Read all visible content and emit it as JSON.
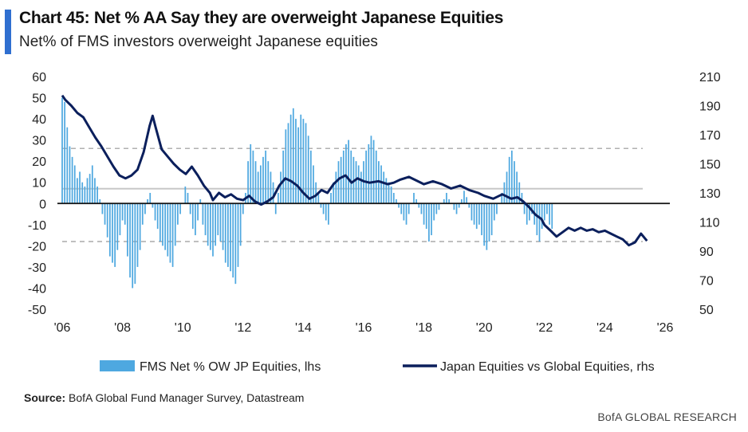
{
  "header": {
    "title": "Chart 45: Net % AA Say they are overweight Japanese Equities",
    "subtitle": "Net% of FMS investors overweight Japanese equities"
  },
  "colors": {
    "accent": "#2f6fd0",
    "bars": "#4ea8e0",
    "line": "#0b1f5c",
    "dashed": "#b0b0b0",
    "refline": "#c8c8c8"
  },
  "footer": {
    "source_label": "Source:",
    "source_text": "BofA Global Fund Manager Survey, Datastream",
    "brand": "BofA GLOBAL RESEARCH"
  },
  "chart_data": {
    "type": "bar+line",
    "title": "Chart 45: Net % AA Say they are overweight Japanese Equities",
    "subtitle": "Net% of FMS investors overweight Japanese equities",
    "x_ticks": [
      "'06",
      "'08",
      "'10",
      "'12",
      "'14",
      "'16",
      "'18",
      "'20",
      "'22",
      "'24",
      "'26"
    ],
    "x_tick_years": [
      2006,
      2008,
      2010,
      2012,
      2014,
      2016,
      2018,
      2020,
      2022,
      2024,
      2026
    ],
    "xlim": [
      2006,
      2026
    ],
    "ylim_left": [
      -50,
      60
    ],
    "y_ticks_left": [
      60,
      50,
      40,
      30,
      20,
      10,
      0,
      -10,
      -20,
      -30,
      -40,
      -50
    ],
    "ylim_right": [
      50,
      210
    ],
    "y_ticks_right": [
      210,
      190,
      170,
      150,
      130,
      110,
      90,
      70,
      50
    ],
    "reference_lines": {
      "dashed_lhs": [
        26,
        -18
      ],
      "solid_lhs": [
        7
      ]
    },
    "legend": {
      "bars": "FMS Net % OW JP Equities, lhs",
      "line": "Japan Equities vs Global Equities, rhs"
    },
    "series": [
      {
        "name": "FMS Net % OW JP Equities, lhs",
        "axis": "left",
        "kind": "bar",
        "step_months": 1,
        "x_start": 2006.0,
        "values": [
          50,
          48,
          36,
          27,
          22,
          18,
          12,
          15,
          10,
          8,
          12,
          14,
          18,
          12,
          8,
          2,
          -5,
          -10,
          -16,
          -25,
          -28,
          -30,
          -22,
          -15,
          -8,
          -10,
          -25,
          -35,
          -40,
          -38,
          -30,
          -22,
          -10,
          -5,
          2,
          5,
          -2,
          -8,
          -12,
          -18,
          -20,
          -22,
          -25,
          -28,
          -30,
          -20,
          -10,
          -5,
          0,
          8,
          5,
          -5,
          -12,
          -15,
          -8,
          2,
          -10,
          -15,
          -20,
          -22,
          -25,
          -20,
          -15,
          -18,
          -22,
          -28,
          -30,
          -32,
          -35,
          -38,
          -30,
          -20,
          -5,
          5,
          20,
          28,
          25,
          20,
          15,
          18,
          22,
          25,
          20,
          15,
          10,
          -5,
          5,
          15,
          25,
          35,
          38,
          42,
          45,
          40,
          36,
          42,
          40,
          38,
          32,
          25,
          18,
          10,
          5,
          -2,
          -5,
          -8,
          -10,
          5,
          10,
          15,
          20,
          22,
          25,
          28,
          30,
          25,
          22,
          20,
          18,
          15,
          20,
          25,
          28,
          32,
          30,
          25,
          20,
          18,
          15,
          12,
          10,
          8,
          5,
          2,
          -2,
          -5,
          -8,
          -10,
          -5,
          0,
          5,
          2,
          -2,
          -5,
          -10,
          -12,
          -18,
          -15,
          -8,
          -5,
          -3,
          0,
          2,
          5,
          2,
          0,
          -3,
          -5,
          -2,
          2,
          6,
          3,
          -2,
          -8,
          -10,
          -12,
          -10,
          -15,
          -20,
          -22,
          -18,
          -15,
          -8,
          -5,
          0,
          5,
          10,
          15,
          22,
          25,
          20,
          15,
          10,
          5,
          -5,
          -10,
          -8,
          -5,
          -10,
          -15,
          -18,
          -12,
          -8,
          -5,
          -10,
          -12
        ]
      },
      {
        "name": "Japan Equities vs Global Equities, rhs",
        "axis": "right",
        "kind": "line",
        "points": [
          [
            2006.0,
            197
          ],
          [
            2006.1,
            194
          ],
          [
            2006.3,
            190
          ],
          [
            2006.5,
            185
          ],
          [
            2006.7,
            182
          ],
          [
            2006.9,
            175
          ],
          [
            2007.1,
            168
          ],
          [
            2007.3,
            162
          ],
          [
            2007.5,
            155
          ],
          [
            2007.7,
            148
          ],
          [
            2007.9,
            142
          ],
          [
            2008.1,
            140
          ],
          [
            2008.3,
            142
          ],
          [
            2008.5,
            146
          ],
          [
            2008.7,
            158
          ],
          [
            2008.9,
            176
          ],
          [
            2009.0,
            183
          ],
          [
            2009.1,
            175
          ],
          [
            2009.3,
            160
          ],
          [
            2009.5,
            155
          ],
          [
            2009.7,
            150
          ],
          [
            2009.9,
            146
          ],
          [
            2010.1,
            143
          ],
          [
            2010.3,
            148
          ],
          [
            2010.5,
            142
          ],
          [
            2010.7,
            135
          ],
          [
            2010.9,
            130
          ],
          [
            2011.0,
            125
          ],
          [
            2011.2,
            130
          ],
          [
            2011.4,
            127
          ],
          [
            2011.6,
            129
          ],
          [
            2011.8,
            126
          ],
          [
            2012.0,
            125
          ],
          [
            2012.2,
            128
          ],
          [
            2012.4,
            124
          ],
          [
            2012.6,
            122
          ],
          [
            2012.8,
            124
          ],
          [
            2013.0,
            127
          ],
          [
            2013.2,
            135
          ],
          [
            2013.4,
            140
          ],
          [
            2013.6,
            138
          ],
          [
            2013.8,
            135
          ],
          [
            2014.0,
            130
          ],
          [
            2014.2,
            126
          ],
          [
            2014.4,
            128
          ],
          [
            2014.6,
            132
          ],
          [
            2014.8,
            130
          ],
          [
            2015.0,
            136
          ],
          [
            2015.2,
            140
          ],
          [
            2015.4,
            142
          ],
          [
            2015.6,
            137
          ],
          [
            2015.8,
            140
          ],
          [
            2016.0,
            138
          ],
          [
            2016.2,
            137
          ],
          [
            2016.5,
            138
          ],
          [
            2016.8,
            136
          ],
          [
            2017.0,
            137
          ],
          [
            2017.2,
            139
          ],
          [
            2017.5,
            141
          ],
          [
            2017.8,
            138
          ],
          [
            2018.0,
            136
          ],
          [
            2018.3,
            138
          ],
          [
            2018.6,
            136
          ],
          [
            2018.9,
            133
          ],
          [
            2019.2,
            135
          ],
          [
            2019.5,
            132
          ],
          [
            2019.8,
            130
          ],
          [
            2020.0,
            128
          ],
          [
            2020.3,
            126
          ],
          [
            2020.6,
            129
          ],
          [
            2020.9,
            126
          ],
          [
            2021.1,
            127
          ],
          [
            2021.3,
            124
          ],
          [
            2021.5,
            120
          ],
          [
            2021.7,
            115
          ],
          [
            2021.9,
            112
          ],
          [
            2022.0,
            108
          ],
          [
            2022.2,
            104
          ],
          [
            2022.4,
            100
          ],
          [
            2022.6,
            103
          ],
          [
            2022.8,
            106
          ],
          [
            2023.0,
            104
          ],
          [
            2023.2,
            106
          ],
          [
            2023.4,
            104
          ],
          [
            2023.6,
            105
          ],
          [
            2023.8,
            103
          ],
          [
            2024.0,
            104
          ],
          [
            2024.2,
            102
          ],
          [
            2024.4,
            100
          ],
          [
            2024.6,
            98
          ],
          [
            2024.8,
            94
          ],
          [
            2025.0,
            96
          ],
          [
            2025.2,
            102
          ],
          [
            2025.4,
            97
          ]
        ]
      }
    ]
  }
}
